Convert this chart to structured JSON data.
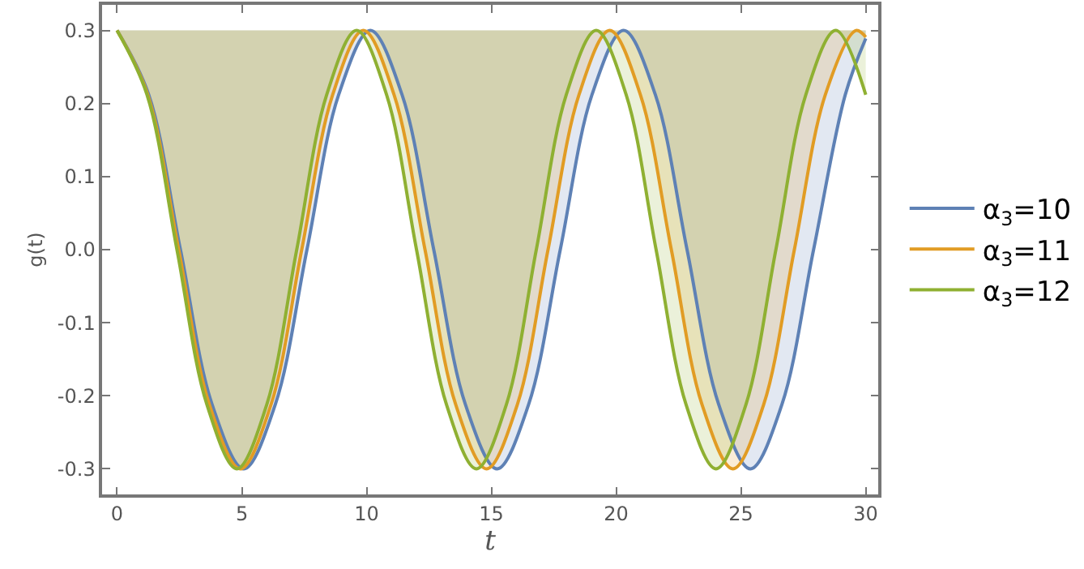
{
  "chart_data": {
    "type": "line",
    "xlabel": "t",
    "ylabel": "g(t)",
    "xlim": [
      -0.6,
      30.5
    ],
    "ylim": [
      -0.335,
      0.335
    ],
    "xticks": [
      0,
      5,
      10,
      15,
      20,
      25,
      30
    ],
    "yticks": [
      {
        "value": -0.3,
        "label": "-0.3"
      },
      {
        "value": -0.2,
        "label": "-0.2"
      },
      {
        "value": -0.1,
        "label": "-0.1"
      },
      {
        "value": 0,
        "label": "0.0"
      },
      {
        "value": 0.1,
        "label": "0.1"
      },
      {
        "value": 0.2,
        "label": "0.2"
      },
      {
        "value": 0.3,
        "label": "0.3"
      }
    ],
    "grid": false,
    "legend": "right",
    "marker": "none",
    "line_style": "solid",
    "series": [
      {
        "name": "α$_{3}$=10",
        "color": "#5e81b5",
        "x": [
          0,
          1.27,
          2.54,
          3.81,
          5.08,
          6.34,
          7.61,
          8.88,
          10.15,
          11.42,
          12.69,
          13.96,
          15.23,
          16.49,
          17.76,
          19.03,
          20.3,
          21.57,
          22.84,
          24.11,
          25.38,
          26.64,
          27.91,
          29.18,
          30
        ],
        "values": [
          0.3,
          0.212,
          0,
          -0.212,
          -0.3,
          -0.212,
          0,
          0.212,
          0.3,
          0.212,
          0,
          -0.212,
          -0.3,
          -0.212,
          0,
          0.212,
          0.3,
          0.212,
          0,
          -0.212,
          -0.3,
          -0.212,
          0,
          0.212,
          0.289
        ]
      },
      {
        "name": "α$_{3}$=11",
        "color": "#e19c24",
        "x": [
          0,
          1.23,
          2.47,
          3.7,
          4.94,
          6.17,
          7.4,
          8.64,
          9.87,
          11.1,
          12.34,
          13.57,
          14.81,
          16.04,
          17.27,
          18.51,
          19.74,
          20.97,
          22.21,
          23.44,
          24.68,
          25.91,
          27.14,
          28.38,
          29.61,
          30
        ],
        "values": [
          0.3,
          0.212,
          0,
          -0.212,
          -0.3,
          -0.212,
          0,
          0.212,
          0.3,
          0.212,
          0,
          -0.212,
          -0.3,
          -0.212,
          0,
          0.212,
          0.3,
          0.212,
          0,
          -0.212,
          -0.3,
          -0.212,
          0,
          0.212,
          0.3,
          0.291
        ]
      },
      {
        "name": "α$_{3}$=12",
        "color": "#8fb032",
        "x": [
          0,
          1.2,
          2.4,
          3.6,
          4.8,
          6,
          7.2,
          8.4,
          9.6,
          10.8,
          12,
          13.2,
          14.4,
          15.6,
          16.8,
          18,
          19.2,
          20.4,
          21.6,
          22.8,
          24,
          25.2,
          26.4,
          27.6,
          28.8,
          30
        ],
        "values": [
          0.3,
          0.212,
          0,
          -0.212,
          -0.3,
          -0.212,
          0,
          0.212,
          0.3,
          0.212,
          0,
          -0.212,
          -0.3,
          -0.212,
          0,
          0.212,
          0.3,
          0.212,
          0,
          -0.212,
          -0.3,
          -0.212,
          0,
          0.212,
          0.3,
          0.212
        ]
      }
    ]
  }
}
